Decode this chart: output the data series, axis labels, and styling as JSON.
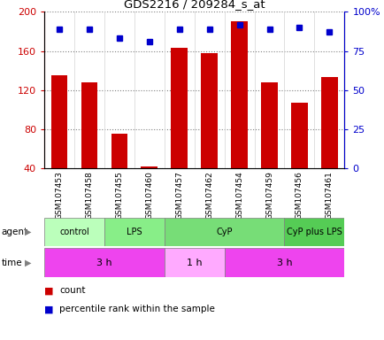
{
  "title": "GDS2216 / 209284_s_at",
  "samples": [
    "GSM107453",
    "GSM107458",
    "GSM107455",
    "GSM107460",
    "GSM107457",
    "GSM107462",
    "GSM107454",
    "GSM107459",
    "GSM107456",
    "GSM107461"
  ],
  "counts": [
    135,
    128,
    75,
    42,
    163,
    158,
    190,
    128,
    107,
    133
  ],
  "percentile_ranks": [
    89,
    89,
    83,
    81,
    89,
    89,
    92,
    89,
    90,
    87
  ],
  "ylim_left": [
    40,
    200
  ],
  "ylim_right": [
    0,
    100
  ],
  "yticks_left": [
    40,
    80,
    120,
    160,
    200
  ],
  "yticks_right": [
    0,
    25,
    50,
    75,
    100
  ],
  "ytick_labels_left": [
    "40",
    "80",
    "120",
    "160",
    "200"
  ],
  "ytick_labels_right": [
    "0",
    "25",
    "50",
    "75",
    "100%"
  ],
  "bar_color": "#cc0000",
  "dot_color": "#0000cc",
  "agent_groups": [
    {
      "label": "control",
      "start": 0,
      "end": 2,
      "color": "#bbffbb"
    },
    {
      "label": "LPS",
      "start": 2,
      "end": 4,
      "color": "#88ee88"
    },
    {
      "label": "CyP",
      "start": 4,
      "end": 8,
      "color": "#77dd77"
    },
    {
      "label": "CyP plus LPS",
      "start": 8,
      "end": 10,
      "color": "#55cc55"
    }
  ],
  "time_groups": [
    {
      "label": "3 h",
      "start": 0,
      "end": 4,
      "color": "#ee44ee"
    },
    {
      "label": "1 h",
      "start": 4,
      "end": 6,
      "color": "#ffaaff"
    },
    {
      "label": "3 h",
      "start": 6,
      "end": 10,
      "color": "#ee44ee"
    }
  ],
  "grid_linestyle": "dotted",
  "legend_items": [
    {
      "label": "count",
      "color": "#cc0000"
    },
    {
      "label": "percentile rank within the sample",
      "color": "#0000cc"
    }
  ]
}
